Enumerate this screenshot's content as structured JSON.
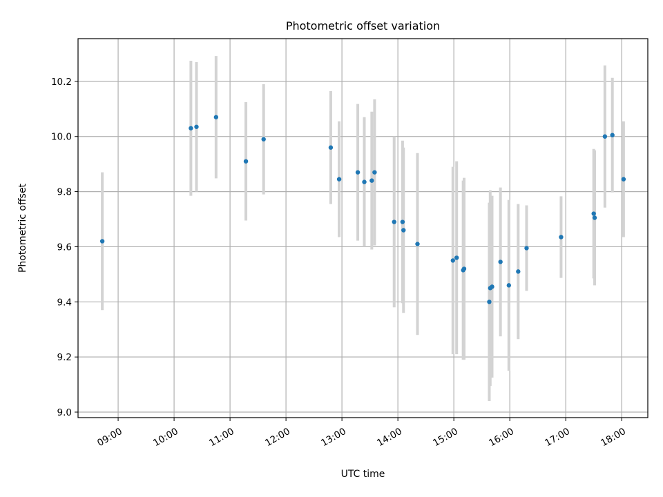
{
  "chart_data": {
    "type": "scatter",
    "title": "Photometric offset variation",
    "xlabel": "UTC time",
    "ylabel": "Photometric offset",
    "x_tick_labels": [
      "09:00",
      "10:00",
      "11:00",
      "12:00",
      "13:00",
      "14:00",
      "15:00",
      "16:00",
      "17:00",
      "18:00"
    ],
    "y_tick_labels": [
      "9.0",
      "9.2",
      "9.4",
      "9.6",
      "9.8",
      "10.0",
      "10.2"
    ],
    "x_ticks_hours": [
      9,
      10,
      11,
      12,
      13,
      14,
      15,
      16,
      17,
      18
    ],
    "y_ticks": [
      9.0,
      9.2,
      9.4,
      9.6,
      9.8,
      10.0,
      10.2
    ],
    "xlim": [
      "08:17",
      "18:28"
    ],
    "ylim": [
      8.98,
      10.355
    ],
    "grid": true,
    "marker_color": "#1f77b4",
    "errorbar_color": "#d3d3d3",
    "points": [
      {
        "time": "08:43",
        "y": 9.62,
        "err": 0.25
      },
      {
        "time": "10:18",
        "y": 10.03,
        "err": 0.245
      },
      {
        "time": "10:24",
        "y": 10.035,
        "err": 0.235
      },
      {
        "time": "10:45",
        "y": 10.07,
        "err": 0.222
      },
      {
        "time": "11:17",
        "y": 9.91,
        "err": 0.215
      },
      {
        "time": "11:36",
        "y": 9.99,
        "err": 0.2
      },
      {
        "time": "12:48",
        "y": 9.96,
        "err": 0.205
      },
      {
        "time": "12:57",
        "y": 9.845,
        "err": 0.21
      },
      {
        "time": "13:17",
        "y": 9.87,
        "err": 0.248
      },
      {
        "time": "13:24",
        "y": 9.835,
        "err": 0.235
      },
      {
        "time": "13:32",
        "y": 9.84,
        "err": 0.25
      },
      {
        "time": "13:35",
        "y": 9.87,
        "err": 0.265
      },
      {
        "time": "13:56",
        "y": 9.69,
        "err": 0.31
      },
      {
        "time": "14:05",
        "y": 9.69,
        "err": 0.295
      },
      {
        "time": "14:06",
        "y": 9.66,
        "err": 0.3
      },
      {
        "time": "14:21",
        "y": 9.61,
        "err": 0.33
      },
      {
        "time": "14:59",
        "y": 9.55,
        "err": 0.34
      },
      {
        "time": "15:03",
        "y": 9.56,
        "err": 0.35
      },
      {
        "time": "15:10",
        "y": 9.515,
        "err": 0.325
      },
      {
        "time": "15:11",
        "y": 9.52,
        "err": 0.33
      },
      {
        "time": "15:38",
        "y": 9.4,
        "err": 0.36
      },
      {
        "time": "15:39",
        "y": 9.45,
        "err": 0.355
      },
      {
        "time": "15:41",
        "y": 9.455,
        "err": 0.33
      },
      {
        "time": "15:50",
        "y": 9.545,
        "err": 0.27
      },
      {
        "time": "15:59",
        "y": 9.46,
        "err": 0.31
      },
      {
        "time": "16:09",
        "y": 9.51,
        "err": 0.245
      },
      {
        "time": "16:18",
        "y": 9.595,
        "err": 0.155
      },
      {
        "time": "16:55",
        "y": 9.635,
        "err": 0.148
      },
      {
        "time": "17:30",
        "y": 9.72,
        "err": 0.235
      },
      {
        "time": "17:31",
        "y": 9.705,
        "err": 0.245
      },
      {
        "time": "17:42",
        "y": 10.0,
        "err": 0.258
      },
      {
        "time": "17:50",
        "y": 10.005,
        "err": 0.208
      },
      {
        "time": "18:02",
        "y": 9.845,
        "err": 0.21
      }
    ]
  }
}
